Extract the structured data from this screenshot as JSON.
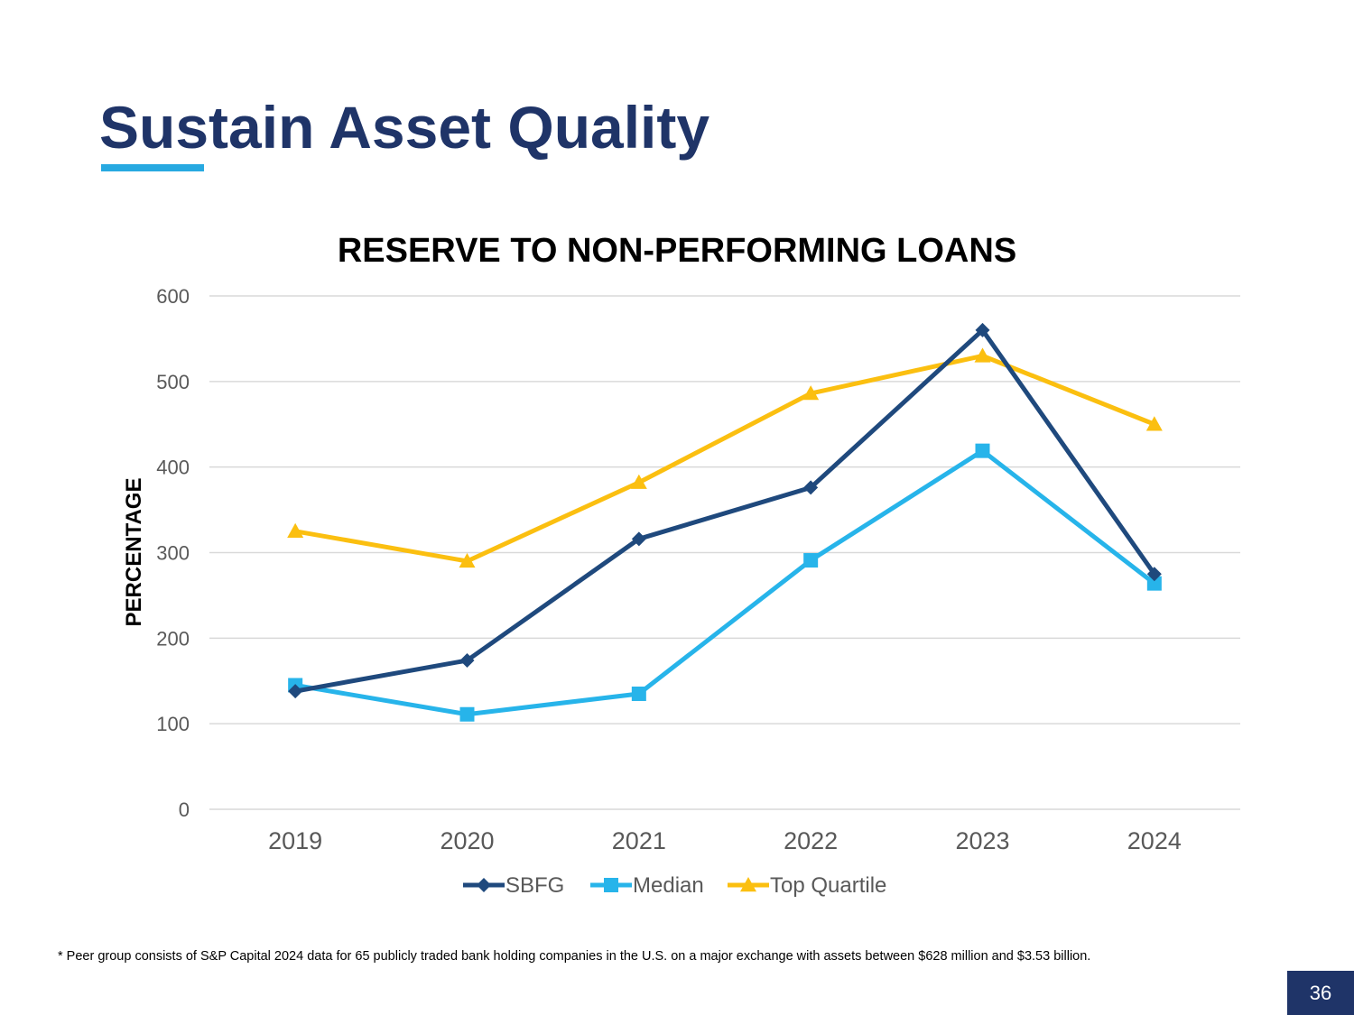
{
  "slide": {
    "title": "Sustain Asset Quality",
    "footnote": "* Peer group consists of S&P Capital 2024 data for 65 publicly traded bank holding companies in the U.S. on a major exchange with assets between $628 million and $3.53 billion.",
    "page_number": "36"
  },
  "colors": {
    "title": "#1f3468",
    "accent": "#27a9e1",
    "sbfg": "#1f497d",
    "median": "#27b4ea",
    "top_quartile": "#fbbf10"
  },
  "chart_data": {
    "type": "line",
    "title": "RESERVE TO NON-PERFORMING LOANS",
    "xlabel": "",
    "ylabel": "PERCENTAGE",
    "ylim": [
      0,
      600
    ],
    "yticks": [
      0,
      100,
      200,
      300,
      400,
      500,
      600
    ],
    "grid": true,
    "legend_position": "bottom",
    "categories": [
      "2019",
      "2020",
      "2021",
      "2022",
      "2023",
      "2024"
    ],
    "series": [
      {
        "name": "SBFG",
        "marker": "diamond",
        "values": [
          138,
          174,
          316,
          376,
          560,
          275
        ]
      },
      {
        "name": "Median",
        "marker": "square",
        "values": [
          145,
          111,
          135,
          291,
          419,
          264
        ]
      },
      {
        "name": "Top Quartile",
        "marker": "triangle",
        "values": [
          325,
          290,
          382,
          486,
          530,
          450
        ]
      }
    ]
  }
}
